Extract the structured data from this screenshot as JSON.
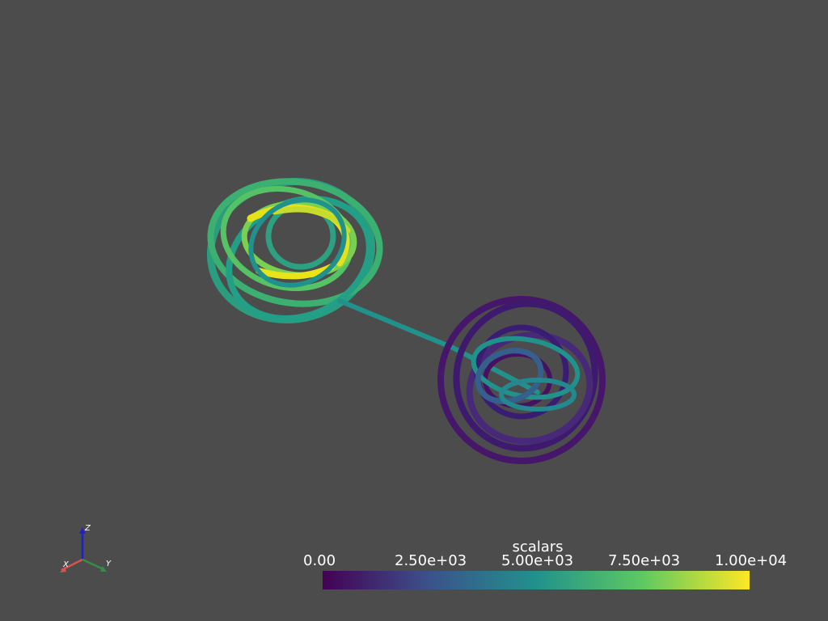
{
  "viewer": {
    "background_color": "#4c4c4c"
  },
  "scene": {
    "object": "streamline-tubes",
    "colormap": "viridis",
    "scalar_range": [
      0,
      10000
    ]
  },
  "axes_widget": {
    "x_label": "X",
    "y_label": "Y",
    "z_label": "Z",
    "x_color": "#d9534f",
    "y_color": "#3a8a4a",
    "z_color": "#1f1fd0"
  },
  "colorbar": {
    "title": "scalars",
    "ticks": [
      "0.00",
      "2.50e+03",
      "5.00e+03",
      "7.50e+03",
      "1.00e+04"
    ],
    "colors": [
      "#440154",
      "#3b528b",
      "#21918c",
      "#5ec962",
      "#fde725"
    ]
  }
}
